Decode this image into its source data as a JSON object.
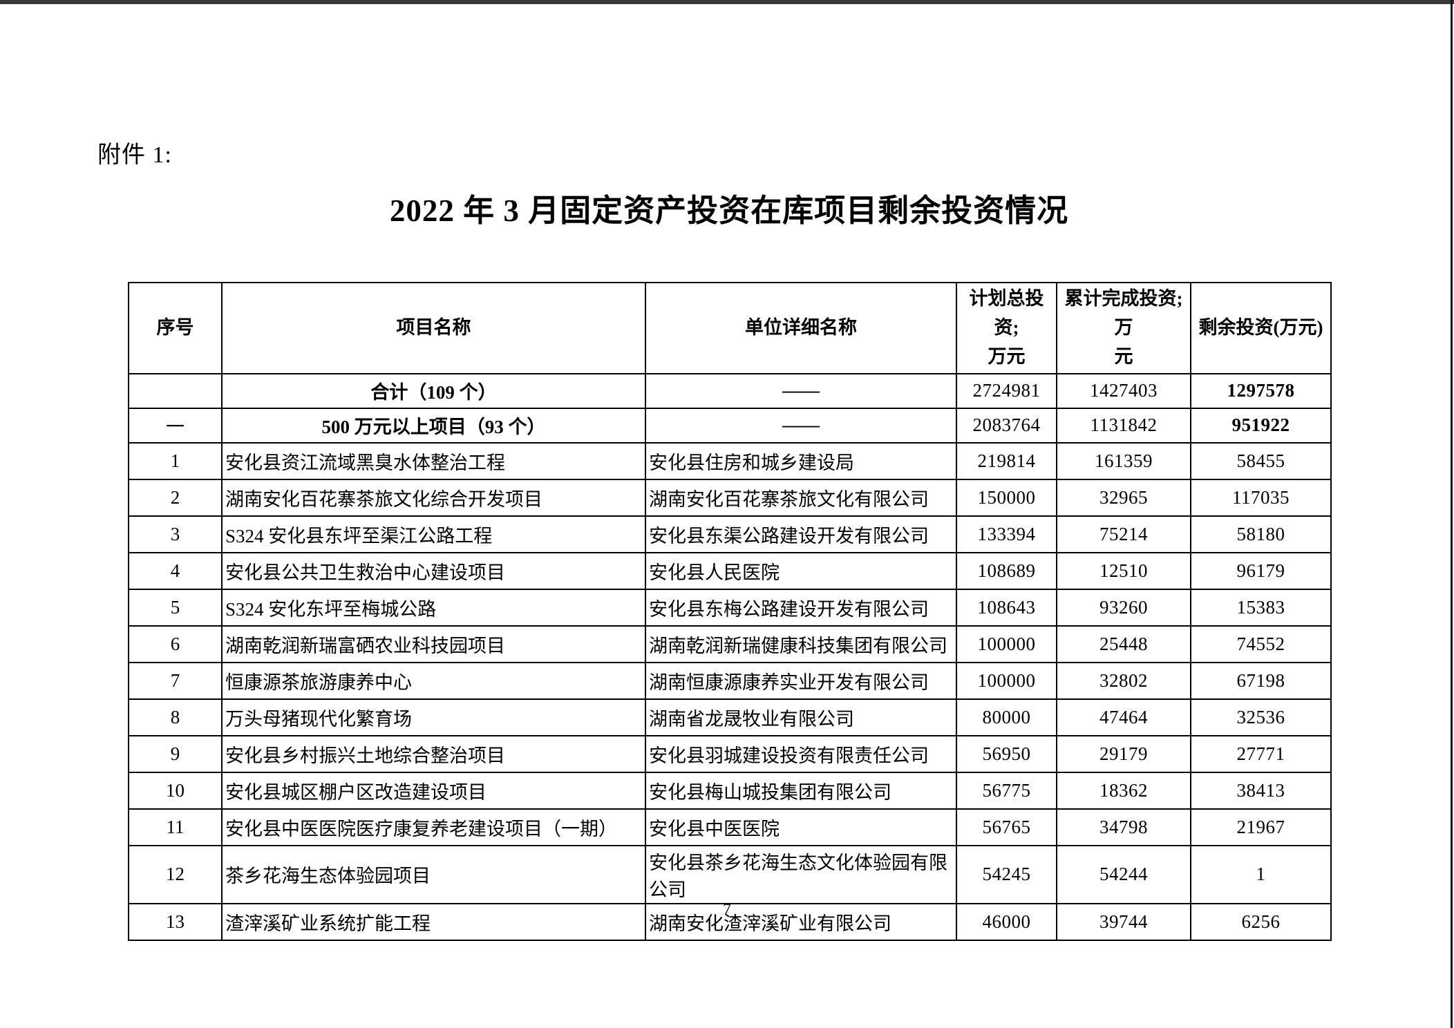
{
  "page": {
    "attachment_label": "附件 1:",
    "title": "2022 年 3 月固定资产投资在库项目剩余投资情况",
    "page_number": "7"
  },
  "colors": {
    "paper": "#ffffff",
    "text": "#000000",
    "table_border": "#000000",
    "scan_edge": "#3a3a3a"
  },
  "table": {
    "columns": [
      {
        "label": "序号"
      },
      {
        "label": "项目名称"
      },
      {
        "label": "单位详细名称"
      },
      {
        "label": "计划总投资;\n万元"
      },
      {
        "label": "累计完成投资;万\n元"
      },
      {
        "label": "剩余投资(万元)"
      }
    ],
    "summary_rows": [
      {
        "seq": "",
        "name": "合计（109 个）",
        "unit": "——",
        "planned": "2724981",
        "completed": "1427403",
        "remaining": "1297578"
      },
      {
        "seq": "一",
        "name": "500 万元以上项目（93 个）",
        "unit": "——",
        "planned": "2083764",
        "completed": "1131842",
        "remaining": "951922"
      }
    ],
    "rows": [
      {
        "seq": "1",
        "name": "安化县资江流域黑臭水体整治工程",
        "unit": "安化县住房和城乡建设局",
        "planned": "219814",
        "completed": "161359",
        "remaining": "58455"
      },
      {
        "seq": "2",
        "name": "湖南安化百花寨茶旅文化综合开发项目",
        "unit": "湖南安化百花寨茶旅文化有限公司",
        "planned": "150000",
        "completed": "32965",
        "remaining": "117035"
      },
      {
        "seq": "3",
        "name": "S324 安化县东坪至渠江公路工程",
        "unit": "安化县东渠公路建设开发有限公司",
        "planned": "133394",
        "completed": "75214",
        "remaining": "58180"
      },
      {
        "seq": "4",
        "name": "安化县公共卫生救治中心建设项目",
        "unit": "安化县人民医院",
        "planned": "108689",
        "completed": "12510",
        "remaining": "96179"
      },
      {
        "seq": "5",
        "name": "S324 安化东坪至梅城公路",
        "unit": "安化县东梅公路建设开发有限公司",
        "planned": "108643",
        "completed": "93260",
        "remaining": "15383"
      },
      {
        "seq": "6",
        "name": "湖南乾润新瑞富硒农业科技园项目",
        "unit": "湖南乾润新瑞健康科技集团有限公司",
        "planned": "100000",
        "completed": "25448",
        "remaining": "74552"
      },
      {
        "seq": "7",
        "name": "恒康源茶旅游康养中心",
        "unit": "湖南恒康源康养实业开发有限公司",
        "planned": "100000",
        "completed": "32802",
        "remaining": "67198"
      },
      {
        "seq": "8",
        "name": "万头母猪现代化繁育场",
        "unit": "湖南省龙晟牧业有限公司",
        "planned": "80000",
        "completed": "47464",
        "remaining": "32536"
      },
      {
        "seq": "9",
        "name": "安化县乡村振兴土地综合整治项目",
        "unit": "安化县羽城建设投资有限责任公司",
        "planned": "56950",
        "completed": "29179",
        "remaining": "27771"
      },
      {
        "seq": "10",
        "name": "安化县城区棚户区改造建设项目",
        "unit": "安化县梅山城投集团有限公司",
        "planned": "56775",
        "completed": "18362",
        "remaining": "38413"
      },
      {
        "seq": "11",
        "name": "安化县中医医院医疗康复养老建设项目（一期）",
        "unit": "安化县中医医院",
        "planned": "56765",
        "completed": "34798",
        "remaining": "21967"
      },
      {
        "seq": "12",
        "name": "茶乡花海生态体验园项目",
        "unit": "安化县茶乡花海生态文化体验园有限公司",
        "planned": "54245",
        "completed": "54244",
        "remaining": "1"
      },
      {
        "seq": "13",
        "name": "渣滓溪矿业系统扩能工程",
        "unit": "湖南安化渣滓溪矿业有限公司",
        "planned": "46000",
        "completed": "39744",
        "remaining": "6256"
      }
    ]
  }
}
